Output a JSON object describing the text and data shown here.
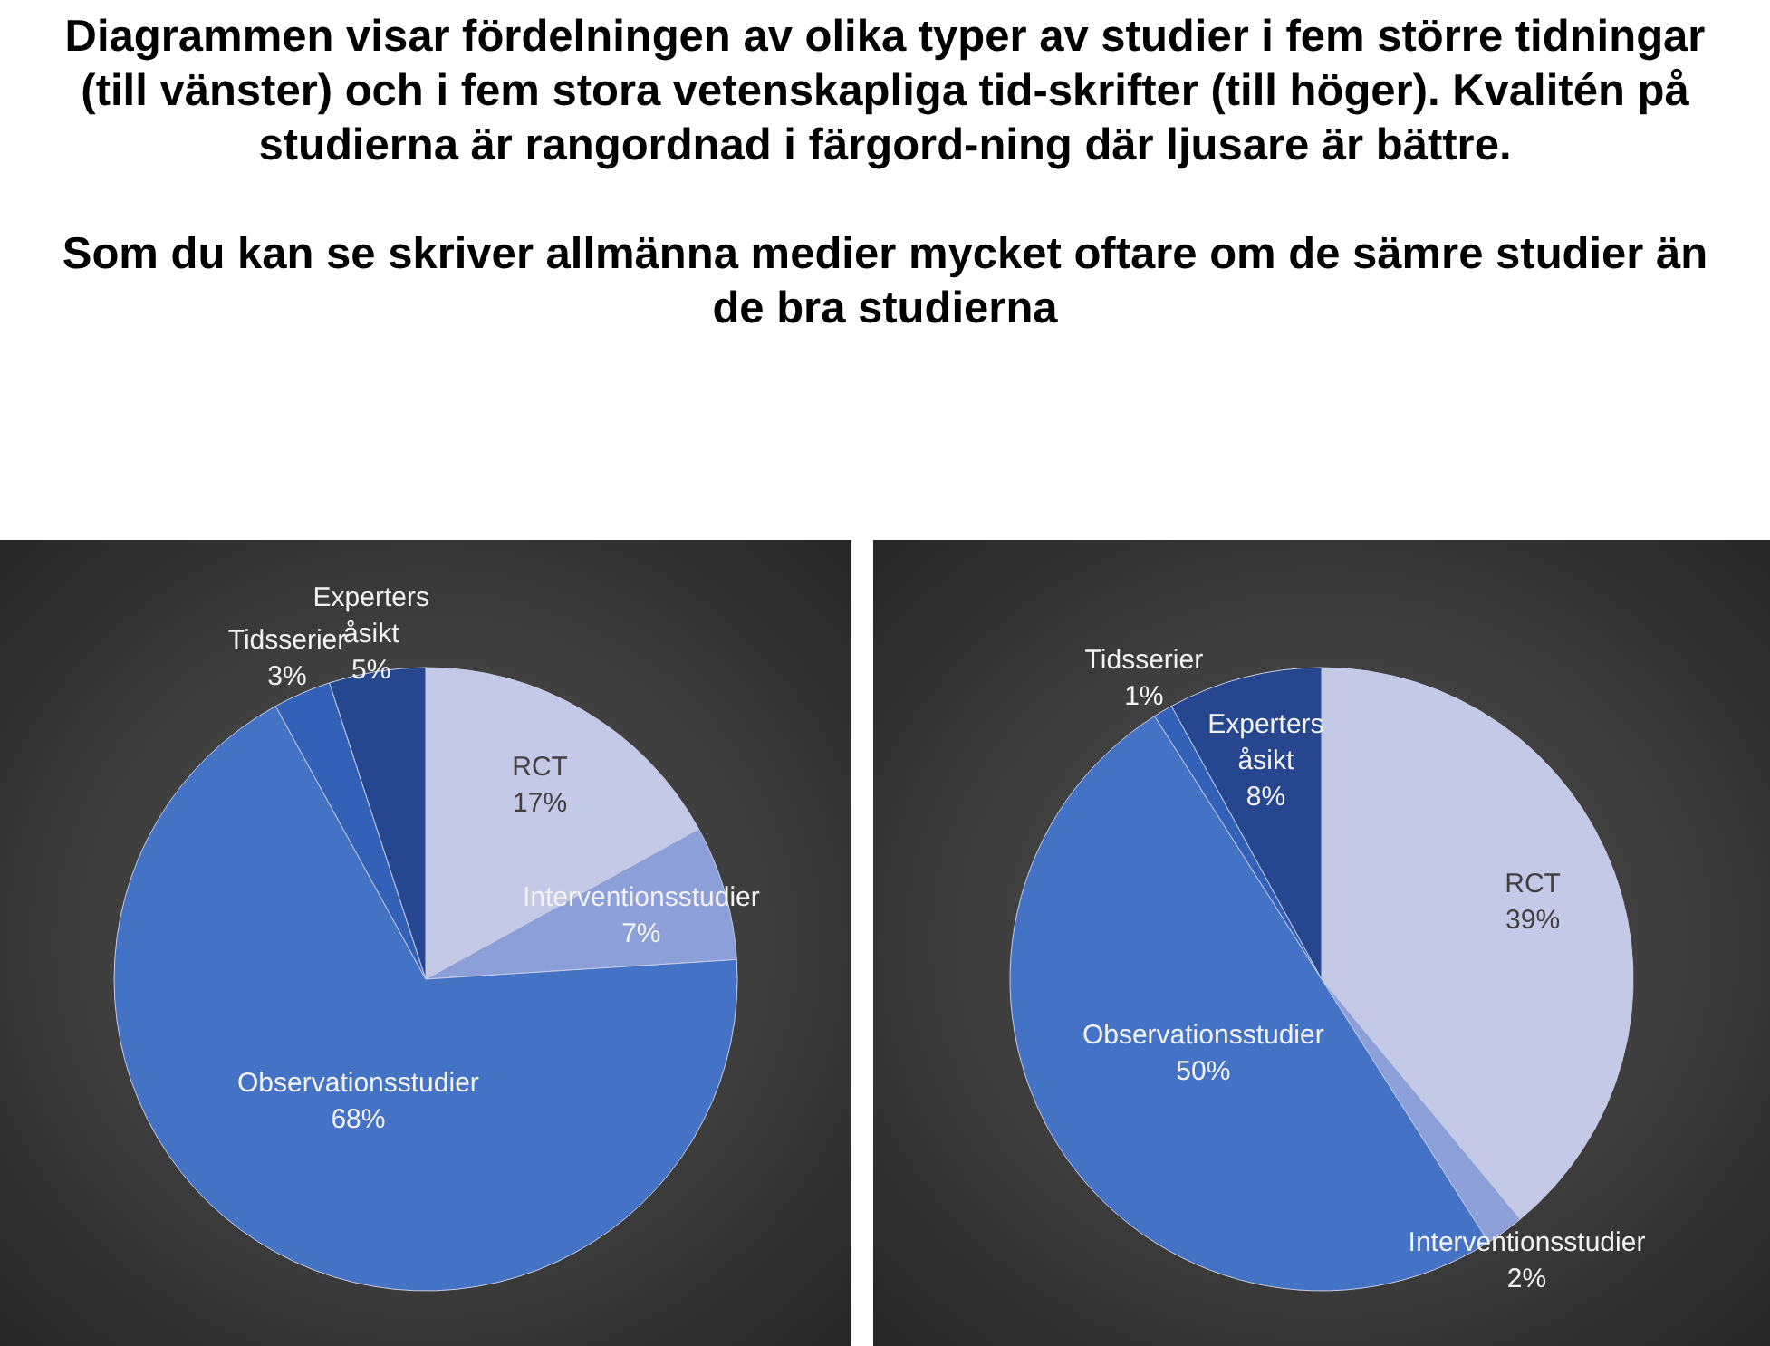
{
  "chart_data": [
    {
      "type": "pie",
      "title": "Diagrammen visar fördelningen av olika typer av studier i fem större tidningar (till vänster) och i fem stora vetenskapliga tid-skrifter (till höger). Kvalitén på studierna är rangordnad i färgord-ning där ljusare är bättre.",
      "subtitle": "Som du kan se skriver allmänna medier mycket oftare om de sämre studier än de bra studierna",
      "categories": [
        "RCT",
        "Interventionsstudier",
        "Observationsstudier",
        "Tidsserier",
        "Experters åsikt"
      ],
      "values": [
        17,
        7,
        68,
        3,
        5
      ],
      "value_labels": [
        "17%",
        "7%",
        "68%",
        "3%",
        "5%"
      ],
      "colors": [
        "#c3c9e6",
        "#8c9fd9",
        "#4472c4",
        "#3361b8",
        "#26468f"
      ]
    },
    {
      "type": "pie",
      "categories": [
        "RCT",
        "Interventionsstudier",
        "Observationsstudier",
        "Tidsserier",
        "Experters åsikt"
      ],
      "values": [
        39,
        2,
        50,
        1,
        8
      ],
      "value_labels": [
        "39%",
        "2%",
        "50%",
        "1%",
        "8%"
      ],
      "colors": [
        "#c3c9e6",
        "#8c9fd9",
        "#4472c4",
        "#3361b8",
        "#26468f"
      ]
    }
  ]
}
